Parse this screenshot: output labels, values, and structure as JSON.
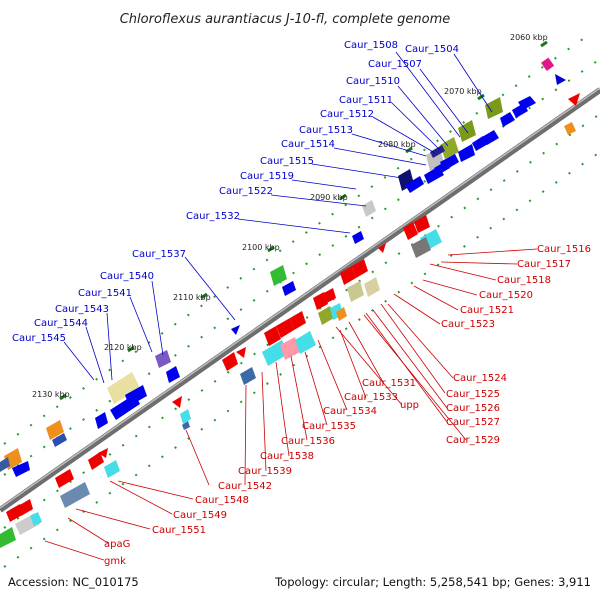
{
  "header": {
    "title": "Chloroflexus aurantiacus J-10-fl, complete genome"
  },
  "footer": {
    "accession": "Accession: NC_010175",
    "summary": "Topology: circular; Length: 5,258,541 bp; Genes: 3,911"
  },
  "ruler": {
    "ticks": [
      {
        "kbp": 2060,
        "label": "2060 kbp"
      },
      {
        "kbp": 2070,
        "label": "2070 kbp"
      },
      {
        "kbp": 2080,
        "label": "2080 kbp"
      },
      {
        "kbp": 2090,
        "label": "2090 kbp"
      },
      {
        "kbp": 2100,
        "label": "2100 kbp"
      },
      {
        "kbp": 2110,
        "label": "2110 kbp"
      },
      {
        "kbp": 2120,
        "label": "2120 kbp"
      },
      {
        "kbp": 2130,
        "label": "2130 kbp"
      }
    ]
  },
  "label_colors": {
    "plus_strand": "#0000cc",
    "minus_strand": "#cc0000"
  },
  "plus_strand_labels": [
    "Caur_1504",
    "Caur_1507",
    "Caur_1508",
    "Caur_1510",
    "Caur_1511",
    "Caur_1512",
    "Caur_1513",
    "Caur_1514",
    "Caur_1515",
    "Caur_1519",
    "Caur_1522",
    "Caur_1532",
    "Caur_1537",
    "Caur_1540",
    "Caur_1541",
    "Caur_1543",
    "Caur_1544",
    "Caur_1545"
  ],
  "minus_strand_labels": [
    "Caur_1516",
    "Caur_1517",
    "Caur_1518",
    "Caur_1520",
    "Caur_1521",
    "Caur_1523",
    "Caur_1524",
    "Caur_1525",
    "Caur_1526",
    "Caur_1527",
    "Caur_1529",
    "Caur_1531",
    "Caur_1533",
    "upp",
    "Caur_1534",
    "Caur_1535",
    "Caur_1536",
    "Caur_1538",
    "Caur_1539",
    "Caur_1542",
    "Caur_1548",
    "Caur_1549",
    "Caur_1551",
    "apaG",
    "gmk"
  ]
}
